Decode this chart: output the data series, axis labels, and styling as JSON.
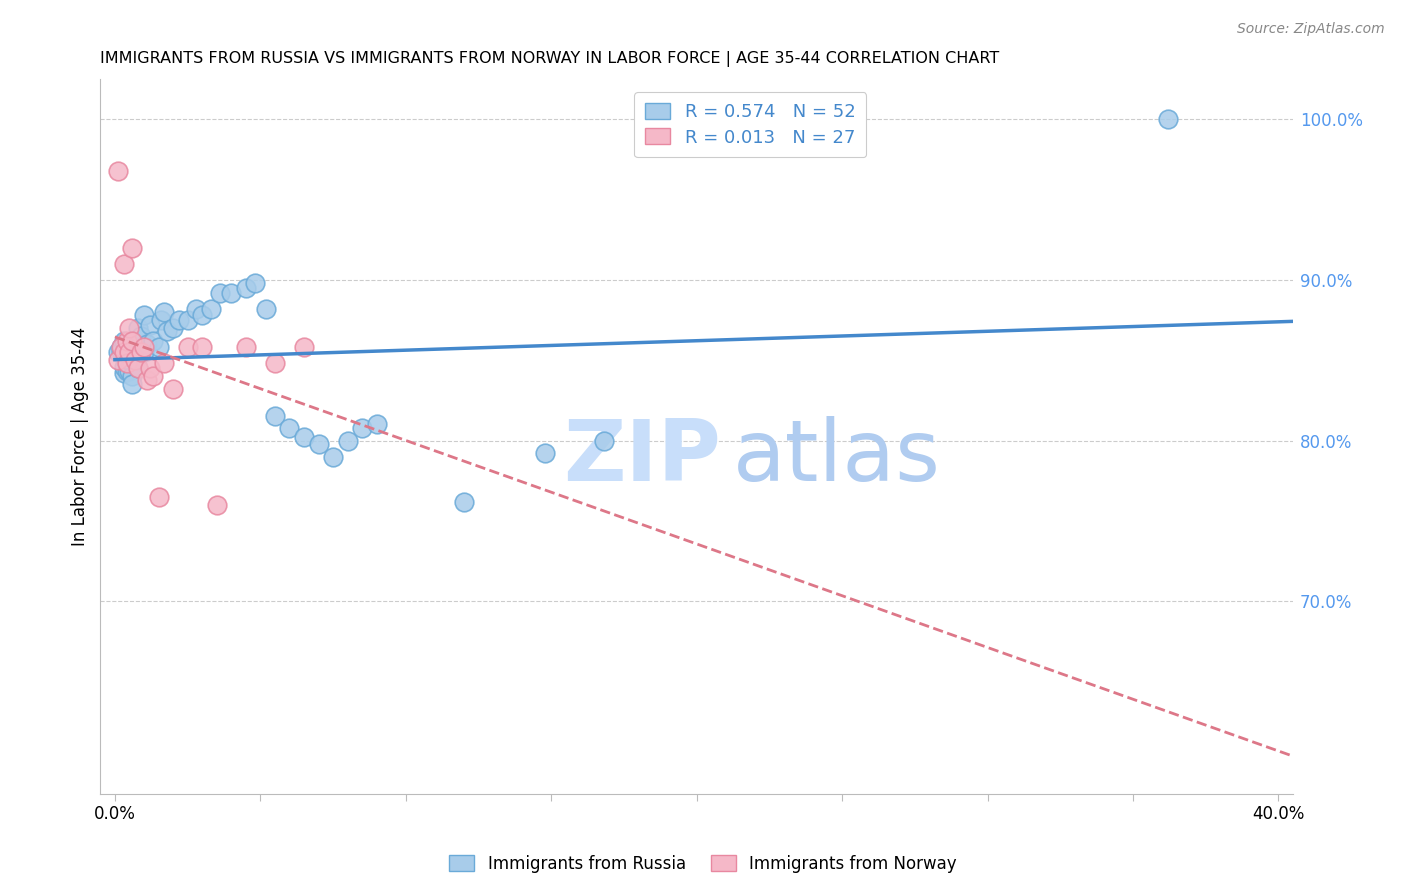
{
  "title": "IMMIGRANTS FROM RUSSIA VS IMMIGRANTS FROM NORWAY IN LABOR FORCE | AGE 35-44 CORRELATION CHART",
  "source": "Source: ZipAtlas.com",
  "ylabel": "In Labor Force | Age 35-44",
  "xlim": [
    -0.005,
    0.405
  ],
  "ylim": [
    0.58,
    1.025
  ],
  "xticks": [
    0.0,
    0.05,
    0.1,
    0.15,
    0.2,
    0.25,
    0.3,
    0.35,
    0.4
  ],
  "xtick_labels": [
    "0.0%",
    "",
    "",
    "",
    "",
    "",
    "",
    "",
    "40.0%"
  ],
  "yticks_right": [
    0.7,
    0.8,
    0.9,
    1.0
  ],
  "ytick_labels_right": [
    "70.0%",
    "80.0%",
    "90.0%",
    "100.0%"
  ],
  "russia_color": "#A8CCEA",
  "russia_edge": "#6AAAD8",
  "norway_color": "#F5B8C8",
  "norway_edge": "#E888A0",
  "trend_russia_color": "#4488CC",
  "trend_norway_color": "#DD7788",
  "R_russia": 0.574,
  "N_russia": 52,
  "R_norway": 0.013,
  "N_norway": 27,
  "legend_label_russia": "Immigrants from Russia",
  "legend_label_norway": "Immigrants from Norway",
  "watermark_zip": "ZIP",
  "watermark_atlas": "atlas",
  "russia_x": [
    0.001,
    0.002,
    0.002,
    0.003,
    0.003,
    0.003,
    0.004,
    0.004,
    0.004,
    0.005,
    0.005,
    0.005,
    0.006,
    0.006,
    0.006,
    0.007,
    0.007,
    0.008,
    0.008,
    0.009,
    0.01,
    0.01,
    0.011,
    0.012,
    0.013,
    0.015,
    0.016,
    0.017,
    0.018,
    0.02,
    0.022,
    0.025,
    0.028,
    0.03,
    0.033,
    0.036,
    0.04,
    0.045,
    0.048,
    0.052,
    0.055,
    0.06,
    0.065,
    0.07,
    0.075,
    0.08,
    0.085,
    0.09,
    0.12,
    0.148,
    0.168,
    0.362
  ],
  "russia_y": [
    0.855,
    0.858,
    0.856,
    0.842,
    0.846,
    0.862,
    0.85,
    0.848,
    0.843,
    0.855,
    0.852,
    0.843,
    0.848,
    0.84,
    0.835,
    0.858,
    0.852,
    0.87,
    0.845,
    0.865,
    0.878,
    0.855,
    0.86,
    0.872,
    0.862,
    0.858,
    0.875,
    0.88,
    0.868,
    0.87,
    0.875,
    0.875,
    0.882,
    0.878,
    0.882,
    0.892,
    0.892,
    0.895,
    0.898,
    0.882,
    0.815,
    0.808,
    0.802,
    0.798,
    0.79,
    0.8,
    0.808,
    0.81,
    0.762,
    0.792,
    0.8,
    1.0
  ],
  "norway_x": [
    0.001,
    0.001,
    0.002,
    0.003,
    0.003,
    0.004,
    0.004,
    0.005,
    0.005,
    0.006,
    0.006,
    0.007,
    0.008,
    0.009,
    0.01,
    0.011,
    0.012,
    0.013,
    0.015,
    0.017,
    0.02,
    0.025,
    0.03,
    0.035,
    0.045,
    0.055,
    0.065
  ],
  "norway_y": [
    0.85,
    0.968,
    0.858,
    0.855,
    0.91,
    0.848,
    0.862,
    0.87,
    0.855,
    0.862,
    0.92,
    0.85,
    0.845,
    0.855,
    0.858,
    0.838,
    0.845,
    0.84,
    0.765,
    0.848,
    0.832,
    0.858,
    0.858,
    0.76,
    0.858,
    0.848,
    0.858
  ],
  "trend_russia_x0": 0.0,
  "trend_russia_x1": 0.405,
  "trend_norway_x0": 0.0,
  "trend_norway_x1": 0.405
}
